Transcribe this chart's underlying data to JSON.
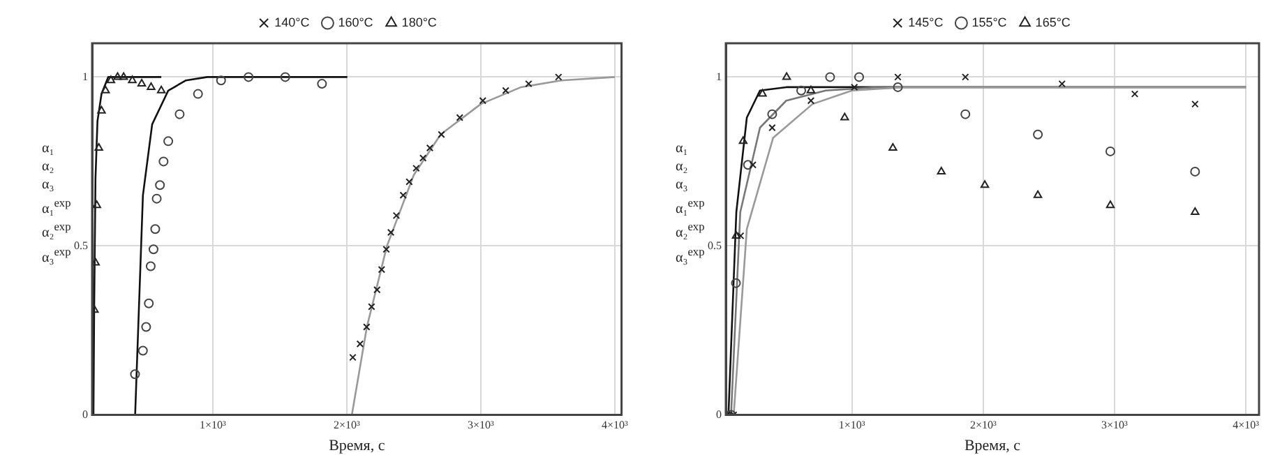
{
  "chart_data": [
    {
      "type": "scatter",
      "xlabel": "Время, с",
      "ylabel": "α₁ α₂ α₃ α₁$^{exp}$ α₂$^{exp}$ α₃$^{exp}$",
      "legend": "top",
      "grid": true,
      "xlim": [
        100,
        4050
      ],
      "ylim": [
        0,
        1.1
      ],
      "xticks": [
        {
          "value": 1000,
          "label": "1×10³"
        },
        {
          "value": 2000,
          "label": "2×10³"
        },
        {
          "value": 3000,
          "label": "3×10³"
        },
        {
          "value": 4000,
          "label": "4×10³"
        }
      ],
      "yticks": [
        0,
        0.5,
        1
      ],
      "series": [
        {
          "name": "140°C",
          "type": "scatter",
          "marker": "cross",
          "color": "#222222",
          "x": [
            2045,
            2099,
            2148,
            2185,
            2226,
            2260,
            2295,
            2329,
            2370,
            2421,
            2466,
            2518,
            2569,
            2620,
            2706,
            2843,
            3015,
            3186,
            3357,
            3580
          ],
          "values": [
            0.17,
            0.21,
            0.26,
            0.32,
            0.37,
            0.43,
            0.49,
            0.54,
            0.59,
            0.65,
            0.69,
            0.73,
            0.76,
            0.79,
            0.83,
            0.88,
            0.93,
            0.96,
            0.98,
            1.0
          ]
        },
        {
          "name": "160°C",
          "type": "scatter",
          "marker": "circle",
          "color": "#444444",
          "x": [
            420,
            479,
            503,
            523,
            537,
            558,
            571,
            582,
            606,
            633,
            668,
            753,
            890,
            1062,
            1267,
            1541,
            1815
          ],
          "values": [
            0.12,
            0.19,
            0.26,
            0.33,
            0.44,
            0.49,
            0.55,
            0.64,
            0.68,
            0.75,
            0.81,
            0.89,
            0.95,
            0.99,
            1.0,
            1.0,
            0.98
          ]
        },
        {
          "name": "180°C",
          "type": "scatter",
          "marker": "triangle",
          "color": "#222222",
          "x": [
            117,
            125,
            135,
            150,
            170,
            200,
            240,
            290,
            335,
            400,
            470,
            540,
            616
          ],
          "values": [
            0.31,
            0.45,
            0.62,
            0.79,
            0.9,
            0.96,
            0.99,
            1.0,
            1.0,
            0.99,
            0.98,
            0.97,
            0.96
          ]
        },
        {
          "type": "line",
          "marker": "none",
          "color": "#999999",
          "x": [
            2038,
            2150,
            2300,
            2500,
            2700,
            3000,
            3300,
            3600,
            4000
          ],
          "values": [
            0,
            0.26,
            0.5,
            0.71,
            0.83,
            0.92,
            0.97,
            0.99,
            1.0
          ]
        },
        {
          "type": "line",
          "marker": "none",
          "color": "#111111",
          "x": [
            421,
            479,
            548,
            668,
            800,
            959,
            2004
          ],
          "values": [
            0,
            0.65,
            0.86,
            0.96,
            0.99,
            1.0,
            1.0
          ]
        },
        {
          "type": "line",
          "marker": "none",
          "color": "#111111",
          "x": [
            110,
            115,
            125,
            140,
            170,
            220,
            616
          ],
          "values": [
            0,
            0.3,
            0.7,
            0.87,
            0.95,
            1.0,
            1.0
          ]
        }
      ]
    },
    {
      "type": "scatter",
      "xlabel": "Время, с",
      "ylabel": "α₁ α₂ α₃ α₁$^{exp}$ α₂$^{exp}$ α₃$^{exp}$",
      "legend": "top",
      "grid": true,
      "xlim": [
        40,
        4100
      ],
      "ylim": [
        0,
        1.1
      ],
      "xticks": [
        {
          "value": 1000,
          "label": "1×10³"
        },
        {
          "value": 2000,
          "label": "2×10³"
        },
        {
          "value": 3000,
          "label": "3×10³"
        },
        {
          "value": 4000,
          "label": "4×10³"
        }
      ],
      "yticks": [
        0,
        0.5,
        1
      ],
      "series": [
        {
          "name": "145°C",
          "type": "scatter",
          "marker": "cross",
          "color": "#222222",
          "x": [
            100,
            153,
            246,
            393,
            688,
            1019,
            1350,
            1864,
            2600,
            3154,
            3613
          ],
          "values": [
            0,
            0.53,
            0.74,
            0.85,
            0.93,
            0.97,
            1.0,
            1.0,
            0.98,
            0.95,
            0.92
          ]
        },
        {
          "name": "155°C",
          "type": "scatter",
          "marker": "circle",
          "color": "#444444",
          "x": [
            80,
            117,
            209,
            393,
            614,
            834,
            1055,
            1350,
            1864,
            2416,
            2968,
            3613
          ],
          "values": [
            0,
            0.39,
            0.74,
            0.89,
            0.96,
            1.0,
            1.0,
            0.97,
            0.89,
            0.83,
            0.78,
            0.72
          ]
        },
        {
          "name": "165°C",
          "type": "scatter",
          "marker": "triangle",
          "color": "#222222",
          "x": [
            62,
            119,
            172,
            319,
            503,
            688,
            945,
            1312,
            1681,
            2012,
            2416,
            2968,
            3613
          ],
          "values": [
            0,
            0.53,
            0.81,
            0.95,
            1.0,
            0.96,
            0.88,
            0.79,
            0.72,
            0.68,
            0.65,
            0.62,
            0.6
          ]
        },
        {
          "type": "line",
          "marker": "none",
          "color": "#999999",
          "x": [
            100,
            200,
            400,
            700,
            1000,
            1400,
            4000
          ],
          "values": [
            0,
            0.55,
            0.82,
            0.92,
            0.96,
            0.97,
            0.97
          ]
        },
        {
          "type": "line",
          "marker": "none",
          "color": "#777777",
          "x": [
            80,
            150,
            300,
            500,
            800,
            1200,
            4000
          ],
          "values": [
            0,
            0.6,
            0.85,
            0.93,
            0.96,
            0.97,
            0.97
          ]
        },
        {
          "type": "line",
          "marker": "none",
          "color": "#111111",
          "x": [
            60,
            120,
            200,
            300,
            500,
            4000
          ],
          "values": [
            0,
            0.6,
            0.88,
            0.96,
            0.97,
            0.97
          ]
        }
      ]
    }
  ]
}
